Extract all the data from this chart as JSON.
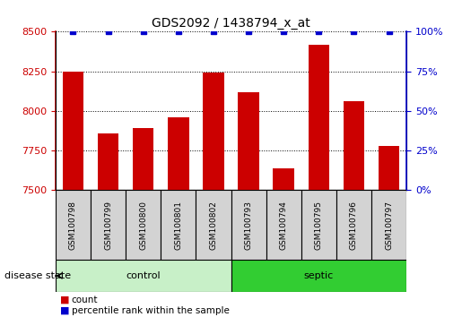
{
  "title": "GDS2092 / 1438794_x_at",
  "samples": [
    "GSM100798",
    "GSM100799",
    "GSM100800",
    "GSM100801",
    "GSM100802",
    "GSM100793",
    "GSM100794",
    "GSM100795",
    "GSM100796",
    "GSM100797"
  ],
  "counts": [
    8250,
    7860,
    7890,
    7960,
    8245,
    8120,
    7640,
    8420,
    8060,
    7780
  ],
  "percentile_ranks": [
    100,
    100,
    100,
    100,
    100,
    100,
    100,
    100,
    100,
    100
  ],
  "groups": [
    "control",
    "control",
    "control",
    "control",
    "control",
    "septic",
    "septic",
    "septic",
    "septic",
    "septic"
  ],
  "control_color_light": "#c8f0c8",
  "control_color": "#90EE90",
  "septic_color": "#32CD32",
  "ylim_left": [
    7500,
    8500
  ],
  "yticks_left": [
    7500,
    7750,
    8000,
    8250,
    8500
  ],
  "ylim_right": [
    0,
    100
  ],
  "yticks_right": [
    0,
    25,
    50,
    75,
    100
  ],
  "bar_color": "#cc0000",
  "dot_color": "#0000cc",
  "bar_width": 0.6,
  "left_axis_color": "#cc0000",
  "right_axis_color": "#0000cc",
  "control_label": "control",
  "septic_label": "septic",
  "disease_state_label": "disease state",
  "legend_count_label": "count",
  "legend_pct_label": "percentile rank within the sample",
  "sample_box_color": "#d3d3d3",
  "title_fontsize": 10
}
